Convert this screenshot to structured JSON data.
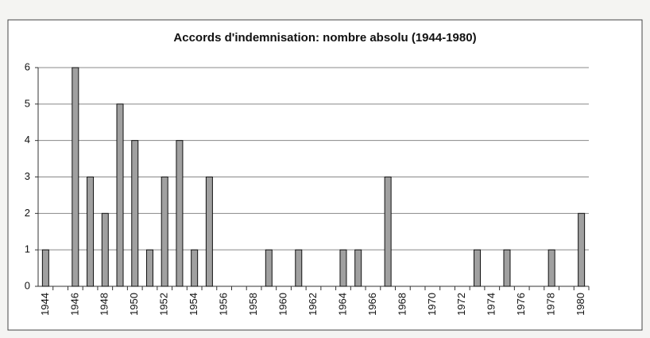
{
  "chart_data": {
    "type": "bar",
    "title": "Accords d'indemnisation: nombre absolu (1944-1980)",
    "categories": [
      "1944",
      null,
      "1946",
      null,
      "1948",
      null,
      "1950",
      null,
      "1952",
      null,
      "1954",
      null,
      "1956",
      null,
      "1958",
      null,
      "1960",
      null,
      "1962",
      null,
      "1964",
      null,
      "1966",
      null,
      "1968",
      null,
      "1970",
      null,
      "1972",
      null,
      "1974",
      null,
      "1976",
      null,
      "1978",
      null,
      "1980"
    ],
    "values": [
      1,
      0,
      6,
      3,
      2,
      5,
      4,
      1,
      3,
      4,
      1,
      3,
      0,
      0,
      0,
      1,
      0,
      1,
      0,
      0,
      1,
      1,
      0,
      3,
      0,
      0,
      0,
      0,
      0,
      1,
      0,
      1,
      0,
      0,
      1,
      0,
      2
    ],
    "color": "#a0a0a0",
    "ylim": [
      0,
      6
    ],
    "yticks": [
      0,
      1,
      2,
      3,
      4,
      5,
      6
    ],
    "grid": true
  }
}
